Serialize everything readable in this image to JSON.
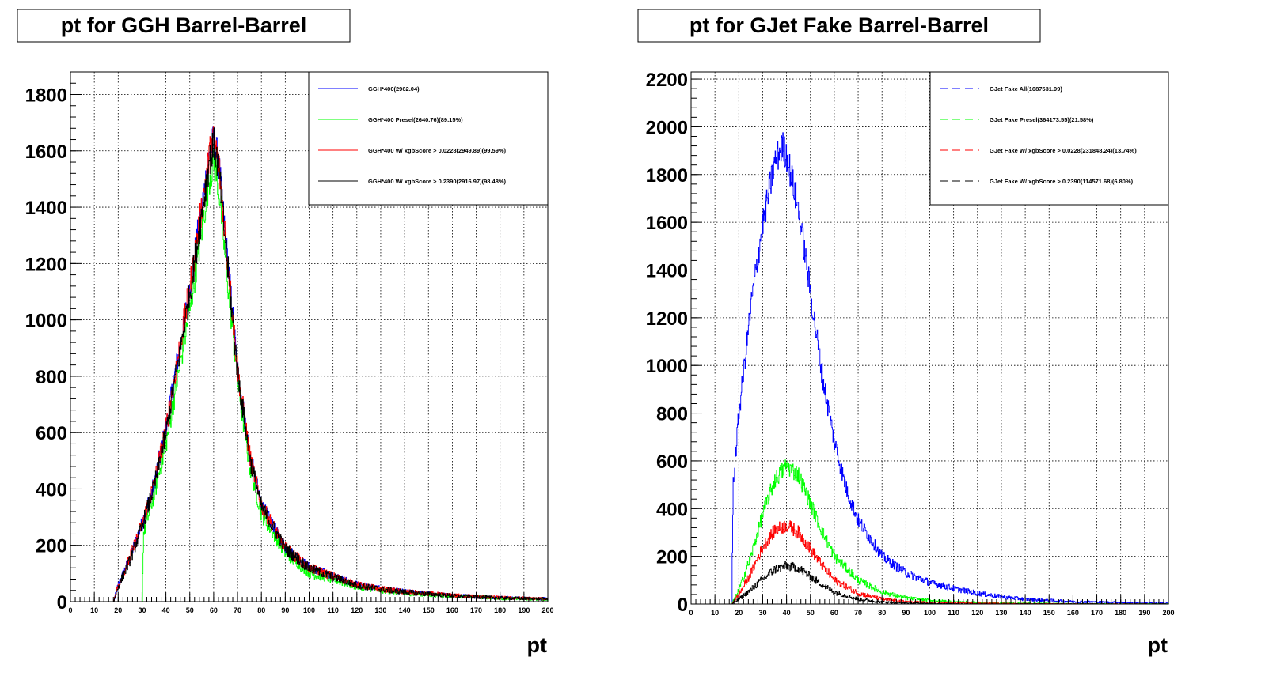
{
  "chart_data": [
    {
      "type": "line",
      "title": "pt for GGH Barrel-Barrel",
      "xlabel": "pt",
      "ylabel": "",
      "xlim": [
        0,
        200
      ],
      "ylim": [
        0,
        1880
      ],
      "xticks": [
        0,
        10,
        20,
        30,
        40,
        50,
        60,
        70,
        80,
        90,
        100,
        110,
        120,
        130,
        140,
        150,
        160,
        170,
        180,
        190,
        200
      ],
      "yticks": [
        0,
        200,
        400,
        600,
        800,
        1000,
        1200,
        1400,
        1600,
        1800
      ],
      "grid": true,
      "legend_position": "top-right",
      "series": [
        {
          "name": "GGH*400(2962.04)",
          "color": "#0000ff",
          "x": [
            18,
            20,
            25,
            30,
            35,
            40,
            45,
            50,
            55,
            58,
            60,
            62,
            65,
            70,
            75,
            80,
            90,
            100,
            110,
            120,
            130,
            140,
            150,
            160,
            170,
            180,
            190,
            200
          ],
          "y": [
            0,
            60,
            160,
            280,
            420,
            620,
            870,
            1120,
            1400,
            1580,
            1640,
            1560,
            1280,
            820,
            520,
            340,
            190,
            120,
            90,
            60,
            45,
            35,
            28,
            22,
            18,
            14,
            12,
            10
          ]
        },
        {
          "name": "GGH*400 Presel(2640.76)(89.15%)",
          "color": "#00ff00",
          "x": [
            30,
            30.5,
            35,
            40,
            45,
            50,
            55,
            58,
            60,
            62,
            65,
            70,
            75,
            80,
            90,
            100,
            110,
            120,
            130,
            140,
            150,
            160,
            170,
            180,
            190,
            200
          ],
          "y": [
            0,
            240,
            380,
            560,
            800,
            1040,
            1320,
            1500,
            1560,
            1480,
            1200,
            780,
            480,
            310,
            170,
            100,
            78,
            52,
            40,
            30,
            24,
            20,
            16,
            12,
            10,
            8
          ]
        },
        {
          "name": "GGH*400 W/ xgbScore > 0.0228(2949.89)(99.59%)",
          "color": "#ff0000",
          "x": [
            18,
            20,
            25,
            30,
            35,
            40,
            45,
            50,
            55,
            58,
            60,
            62,
            65,
            70,
            75,
            80,
            90,
            100,
            110,
            120,
            130,
            140,
            150,
            160,
            170,
            180,
            190,
            200
          ],
          "y": [
            0,
            60,
            160,
            280,
            420,
            620,
            870,
            1120,
            1400,
            1580,
            1640,
            1560,
            1280,
            820,
            520,
            340,
            190,
            120,
            90,
            60,
            45,
            35,
            28,
            22,
            18,
            14,
            12,
            10
          ]
        },
        {
          "name": "GGH*400 W/ xgbScore > 0.2390(2916.97)(98.48%)",
          "color": "#000000",
          "x": [
            18,
            20,
            25,
            30,
            35,
            40,
            45,
            50,
            55,
            58,
            60,
            62,
            65,
            70,
            75,
            80,
            90,
            100,
            110,
            120,
            130,
            140,
            150,
            160,
            170,
            180,
            190,
            200
          ],
          "y": [
            0,
            55,
            150,
            270,
            410,
            600,
            850,
            1100,
            1380,
            1560,
            1620,
            1540,
            1260,
            810,
            510,
            335,
            188,
            118,
            88,
            58,
            44,
            34,
            27,
            21,
            17,
            13,
            11,
            9
          ]
        }
      ]
    },
    {
      "type": "line",
      "title": "pt for GJet Fake Barrel-Barrel",
      "xlabel": "pt",
      "ylabel": "",
      "xlim": [
        0,
        200
      ],
      "ylim": [
        0,
        2230
      ],
      "xticks": [
        0,
        10,
        20,
        30,
        40,
        50,
        60,
        70,
        80,
        90,
        100,
        110,
        120,
        130,
        140,
        150,
        160,
        170,
        180,
        190,
        200
      ],
      "yticks": [
        0,
        200,
        400,
        600,
        800,
        1000,
        1200,
        1400,
        1600,
        1800,
        2000,
        2200
      ],
      "grid": true,
      "legend_position": "top-right",
      "series": [
        {
          "name": "GJet Fake All(1687531.99)",
          "color": "#0000ff",
          "x": [
            17,
            17.5,
            20,
            25,
            30,
            35,
            38,
            40,
            45,
            50,
            55,
            60,
            65,
            70,
            80,
            90,
            100,
            110,
            120,
            130,
            140,
            150,
            160,
            170,
            180,
            190,
            200
          ],
          "y": [
            0,
            500,
            800,
            1250,
            1600,
            1850,
            1920,
            1880,
            1650,
            1300,
            950,
            680,
            480,
            350,
            200,
            130,
            90,
            65,
            45,
            30,
            20,
            15,
            10,
            8,
            6,
            4,
            3
          ]
        },
        {
          "name": "GJet Fake Presel(364173.55)(21.58%)",
          "color": "#00ff00",
          "x": [
            17,
            20,
            25,
            30,
            35,
            40,
            45,
            50,
            55,
            60,
            70,
            80,
            90,
            100,
            110,
            120,
            130,
            140,
            150,
            160,
            200
          ],
          "y": [
            0,
            60,
            200,
            380,
            520,
            580,
            540,
            420,
            300,
            200,
            100,
            50,
            25,
            15,
            10,
            6,
            4,
            3,
            2,
            1,
            0
          ]
        },
        {
          "name": "GJet Fake W/ xgbScore > 0.0228(231848.24)(13.74%)",
          "color": "#ff0000",
          "x": [
            17,
            20,
            25,
            30,
            35,
            40,
            45,
            50,
            55,
            60,
            70,
            80,
            90,
            100,
            110,
            120,
            130,
            140,
            150,
            160,
            200
          ],
          "y": [
            0,
            40,
            130,
            240,
            310,
            330,
            300,
            230,
            160,
            100,
            45,
            20,
            10,
            6,
            4,
            3,
            2,
            1,
            1,
            0,
            0
          ]
        },
        {
          "name": "GJet Fake W/ xgbScore > 0.2390(114571.68)(6.80%)",
          "color": "#000000",
          "x": [
            17,
            20,
            25,
            30,
            35,
            40,
            45,
            50,
            55,
            60,
            70,
            80,
            90,
            100,
            110,
            120,
            200
          ],
          "y": [
            0,
            20,
            60,
            105,
            145,
            160,
            150,
            115,
            80,
            50,
            20,
            8,
            4,
            2,
            1,
            0,
            0
          ]
        }
      ]
    }
  ]
}
